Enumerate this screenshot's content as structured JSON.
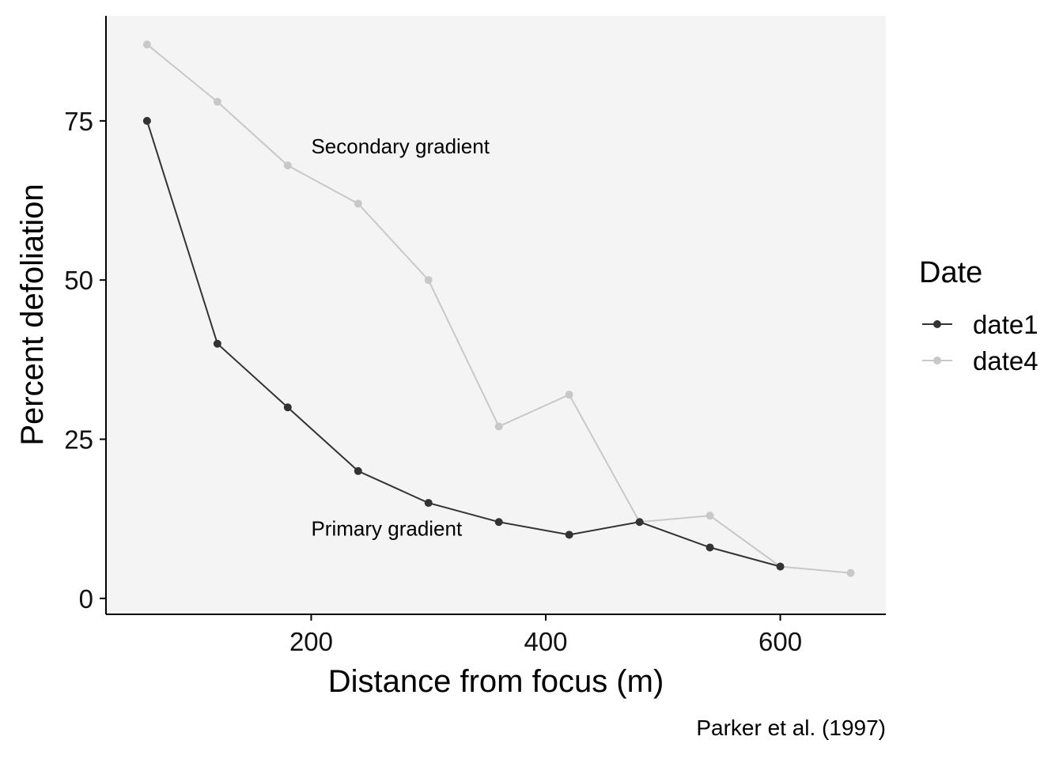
{
  "chart_data": {
    "type": "line",
    "xlabel": "Distance from focus (m)",
    "ylabel": "Percent defoliation",
    "caption": "Parker et al. (1997)",
    "xlim": [
      25,
      690
    ],
    "ylim": [
      -2.5,
      91.5
    ],
    "x_ticks": [
      200,
      400,
      600
    ],
    "y_ticks": [
      0,
      25,
      50,
      75
    ],
    "x_tick_labels": [
      "200",
      "400",
      "600"
    ],
    "y_tick_labels": [
      "0",
      "25",
      "50",
      "75"
    ],
    "grid": false,
    "panel_background": "#f4f4f4",
    "legend": {
      "title": "Date",
      "position": "right",
      "labels": [
        "date1",
        "date4"
      ]
    },
    "series": [
      {
        "name": "date1",
        "color": "#333333",
        "x": [
          60,
          120,
          180,
          240,
          300,
          360,
          420,
          480,
          540,
          600
        ],
        "y": [
          75,
          40,
          30,
          20,
          15,
          12,
          10,
          12,
          8,
          5
        ]
      },
      {
        "name": "date4",
        "color": "#c8c8c8",
        "x": [
          60,
          120,
          180,
          240,
          300,
          360,
          420,
          480,
          540,
          600,
          660
        ],
        "y": [
          87,
          78,
          68,
          62,
          50,
          27,
          32,
          12,
          13,
          5,
          4
        ]
      }
    ],
    "annotations": [
      {
        "text": "Secondary gradient",
        "x": 200,
        "y": 71
      },
      {
        "text": "Primary gradient",
        "x": 200,
        "y": 11
      }
    ]
  }
}
